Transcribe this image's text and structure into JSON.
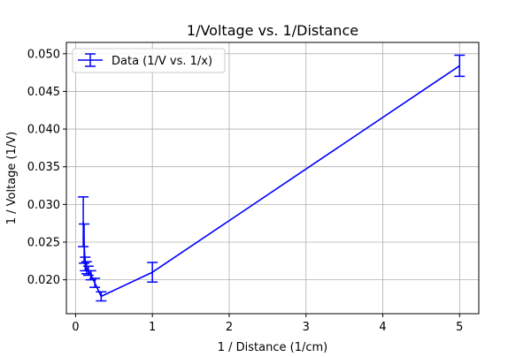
{
  "chart_data": {
    "type": "line",
    "title": "1/Voltage vs. 1/Distance",
    "xlabel": "1 / Distance (1/cm)",
    "ylabel": "1 / Voltage (1/V)",
    "xlim": [
      -0.12,
      5.25
    ],
    "ylim": [
      0.0155,
      0.0515
    ],
    "xticks": [
      0,
      1,
      2,
      3,
      4,
      5
    ],
    "xtick_labels": [
      "0",
      "1",
      "2",
      "3",
      "4",
      "5"
    ],
    "yticks": [
      0.02,
      0.025,
      0.03,
      0.035,
      0.04,
      0.045,
      0.05
    ],
    "ytick_labels": [
      "0.020",
      "0.025",
      "0.030",
      "0.035",
      "0.040",
      "0.045",
      "0.050"
    ],
    "grid": true,
    "legend_position": "top-left",
    "series": [
      {
        "name": "Data (1/V vs. 1/x)",
        "color": "#0000ff",
        "x": [
          0.1,
          0.111,
          0.125,
          0.143,
          0.167,
          0.2,
          0.25,
          0.333,
          1.0,
          5.0
        ],
        "y": [
          0.0277,
          0.0248,
          0.0221,
          0.0216,
          0.0212,
          0.0206,
          0.0196,
          0.0178,
          0.021,
          0.0484
        ],
        "yerr": [
          0.0033,
          0.0026,
          0.0009,
          0.0008,
          0.0006,
          0.0006,
          0.0006,
          0.0006,
          0.0013,
          0.0014
        ]
      }
    ]
  }
}
